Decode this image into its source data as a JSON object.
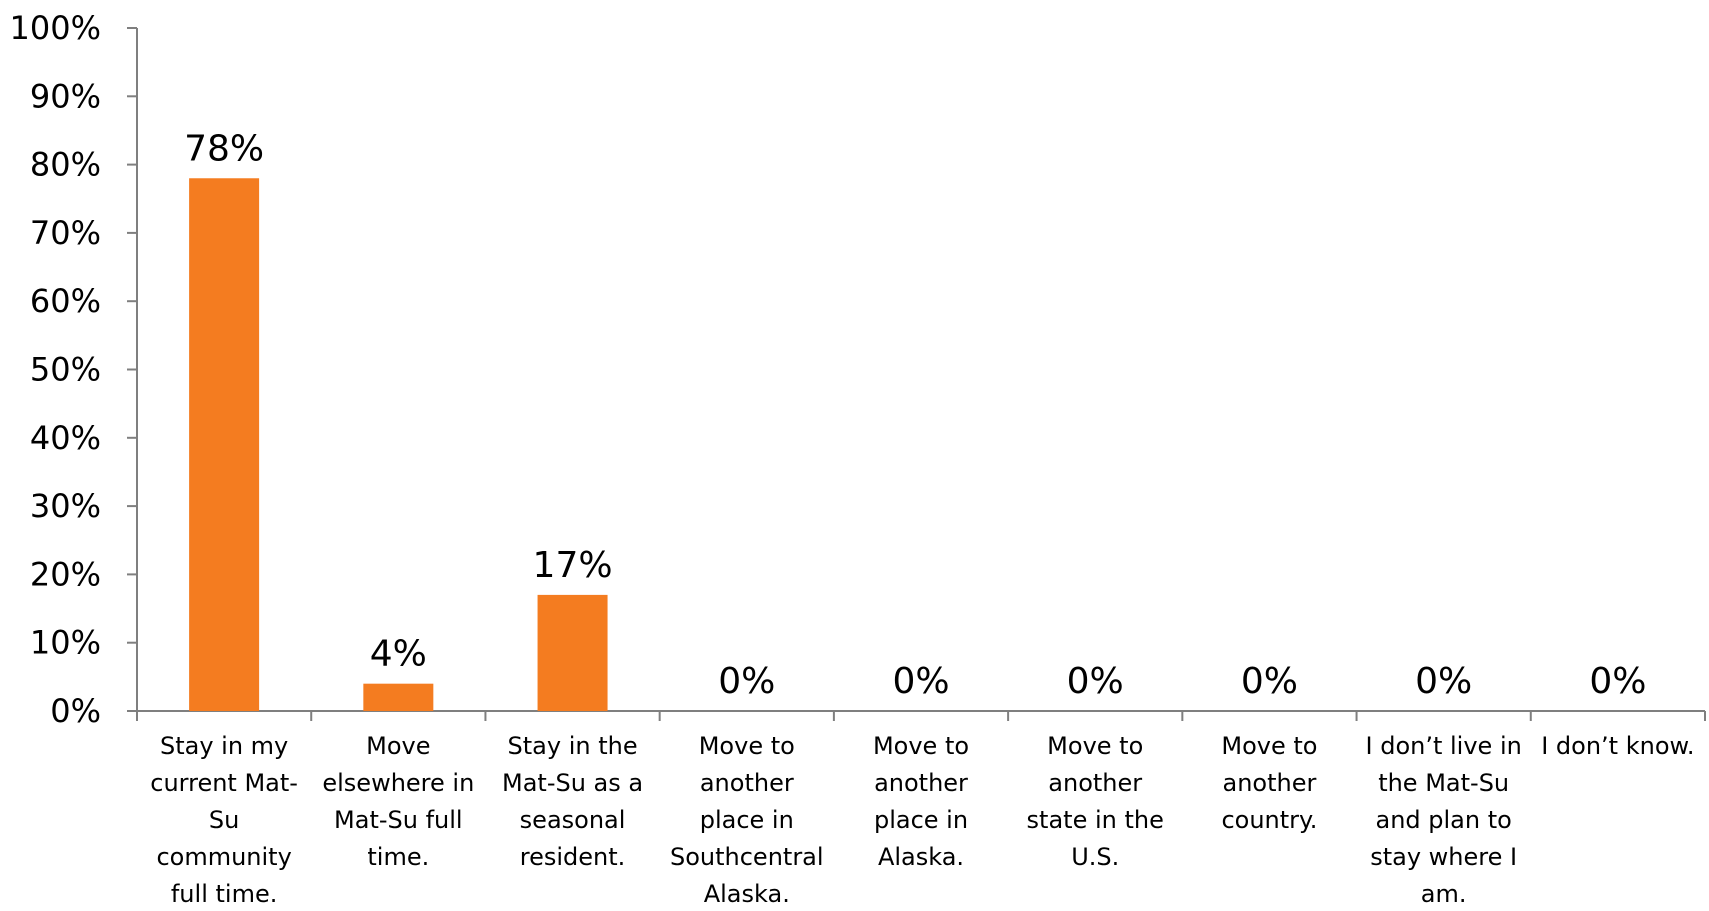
{
  "chart_data": {
    "type": "bar",
    "categories": [
      "Stay in my current Mat-Su community full time.",
      "Move elsewhere in Mat-Su full time.",
      "Stay in the Mat-Su as a seasonal resident.",
      "Move to another place in Southcentral Alaska.",
      "Move to another place in Alaska.",
      "Move to another state in the U.S.",
      "Move to another country.",
      "I don’t live in the Mat-Su and plan to stay where I am.",
      "I don’t know."
    ],
    "category_label_lines": [
      [
        "Stay in my",
        "current Mat-",
        "Su",
        "community",
        "full time."
      ],
      [
        "Move",
        "elsewhere in",
        "Mat-Su full",
        "time."
      ],
      [
        "Stay in the",
        "Mat-Su as a",
        "seasonal",
        "resident."
      ],
      [
        "Move to",
        "another",
        "place in",
        "Southcentral",
        "Alaska."
      ],
      [
        "Move to",
        "another",
        "place in",
        "Alaska."
      ],
      [
        "Move to",
        "another",
        "state in the",
        "U.S."
      ],
      [
        "Move to",
        "another",
        "country."
      ],
      [
        "I don’t live in",
        "the Mat-Su",
        "and plan to",
        "stay where I",
        "am."
      ],
      [
        "I don’t know."
      ]
    ],
    "values": [
      78,
      4,
      17,
      0,
      0,
      0,
      0,
      0,
      0
    ],
    "data_labels": [
      "78%",
      "4%",
      "17%",
      "0%",
      "0%",
      "0%",
      "0%",
      "0%",
      "0%"
    ],
    "y_ticks": [
      "0%",
      "10%",
      "20%",
      "30%",
      "40%",
      "50%",
      "60%",
      "70%",
      "80%",
      "90%",
      "100%"
    ],
    "ylim": [
      0,
      100
    ],
    "title": "",
    "xlabel": "",
    "ylabel": "",
    "grid": false,
    "legend": "none",
    "bar_color": "#F47C20",
    "axis_color": "#7F7F7F"
  }
}
